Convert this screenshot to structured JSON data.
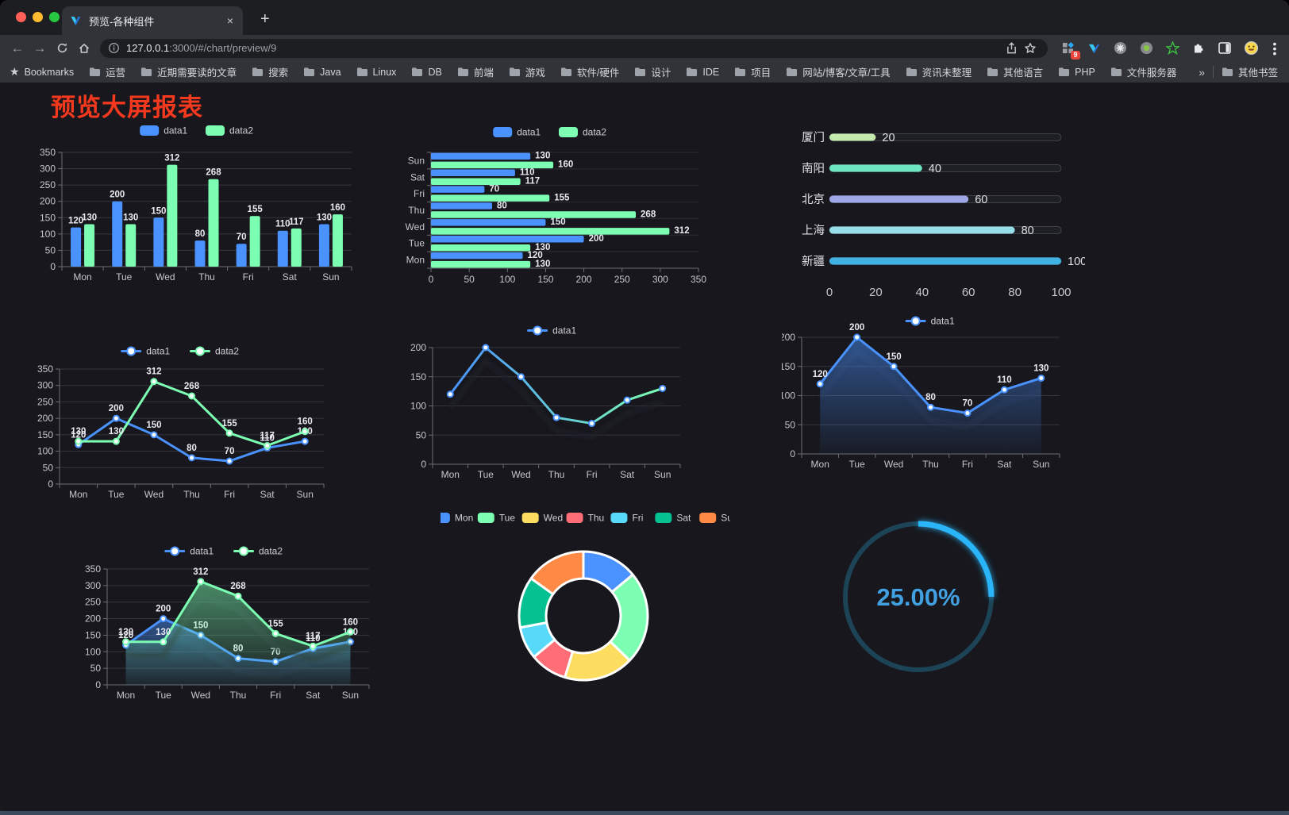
{
  "browser": {
    "tab": {
      "title": "预览-各种组件",
      "close_glyph": "×",
      "new_tab_glyph": "+"
    },
    "url": {
      "host": "127.0.0.1",
      "rest": ":3000/#/chart/preview/9"
    },
    "extension_badge": "9",
    "bookmarks_label": "Bookmarks",
    "bookmarks": [
      "运营",
      "近期需要读的文章",
      "搜索",
      "Java",
      "Linux",
      "DB",
      "前端",
      "游戏",
      "软件/硬件",
      "设计",
      "IDE",
      "项目",
      "网站/博客/文章/工具",
      "资讯未整理",
      "其他语言",
      "PHP",
      "文件服务器"
    ],
    "bookmarks_overflow": "»",
    "other_bookmarks": "其他书签"
  },
  "page": {
    "title": "预览大屏报表",
    "title_color": "#f5391e"
  },
  "chart_data": [
    {
      "id": "bar-vertical",
      "type": "bar",
      "categories": [
        "Mon",
        "Tue",
        "Wed",
        "Thu",
        "Fri",
        "Sat",
        "Sun"
      ],
      "series": [
        {
          "name": "data1",
          "color": "#4992ff",
          "values": [
            120,
            200,
            150,
            80,
            70,
            110,
            130
          ]
        },
        {
          "name": "data2",
          "color": "#7cffb2",
          "values": [
            130,
            130,
            312,
            268,
            155,
            117,
            160
          ]
        }
      ],
      "ylim": [
        0,
        350
      ],
      "ytick": 50,
      "legend_position": "top",
      "grid": true,
      "value_labels": true
    },
    {
      "id": "bar-horizontal",
      "type": "bar-horizontal",
      "category_order": "bottom-to-top",
      "categories": [
        "Mon",
        "Tue",
        "Wed",
        "Thu",
        "Fri",
        "Sat",
        "Sun"
      ],
      "series": [
        {
          "name": "data1",
          "color": "#4992ff",
          "values": [
            120,
            200,
            150,
            80,
            70,
            110,
            130
          ]
        },
        {
          "name": "data2",
          "color": "#7cffb2",
          "values": [
            130,
            130,
            312,
            268,
            155,
            117,
            160
          ]
        }
      ],
      "xlim": [
        0,
        350
      ],
      "xtick": 50,
      "legend_position": "top",
      "value_labels": true
    },
    {
      "id": "progress-bars",
      "type": "bar-horizontal",
      "variant": "rounded-progress",
      "categories": [
        "厦门",
        "南阳",
        "北京",
        "上海",
        "新疆"
      ],
      "values": [
        20,
        40,
        60,
        80,
        100
      ],
      "colors": [
        "#c4ebad",
        "#6be6c1",
        "#a0a7e6",
        "#96dee8",
        "#3fb1e3"
      ],
      "xlim": [
        0,
        100
      ],
      "xticks": [
        0,
        20,
        40,
        60,
        80,
        100
      ],
      "value_labels": true
    },
    {
      "id": "line-dual",
      "type": "line",
      "categories": [
        "Mon",
        "Tue",
        "Wed",
        "Thu",
        "Fri",
        "Sat",
        "Sun"
      ],
      "series": [
        {
          "name": "data1",
          "color": "#4992ff",
          "values": [
            120,
            200,
            150,
            80,
            70,
            110,
            130
          ]
        },
        {
          "name": "data2",
          "color": "#7cffb2",
          "values": [
            130,
            130,
            312,
            268,
            155,
            117,
            160
          ]
        }
      ],
      "ylim": [
        0,
        350
      ],
      "ytick": 50,
      "legend_position": "top",
      "value_labels": true,
      "markers": true
    },
    {
      "id": "line-single",
      "type": "line",
      "categories": [
        "Mon",
        "Tue",
        "Wed",
        "Thu",
        "Fri",
        "Sat",
        "Sun"
      ],
      "series": [
        {
          "name": "data1",
          "color": "#4992ff",
          "color_gradient": [
            "#4992ff",
            "#7cffb2"
          ],
          "values": [
            120,
            200,
            150,
            80,
            70,
            110,
            130
          ]
        }
      ],
      "ylim": [
        0,
        200
      ],
      "ytick": 50,
      "legend_position": "top",
      "value_labels": false,
      "markers": true,
      "shadow": true
    },
    {
      "id": "area-single",
      "type": "area",
      "categories": [
        "Mon",
        "Tue",
        "Wed",
        "Thu",
        "Fri",
        "Sat",
        "Sun"
      ],
      "series": [
        {
          "name": "data1",
          "color": "#4992ff",
          "values": [
            120,
            200,
            150,
            80,
            70,
            110,
            130
          ],
          "area": true
        }
      ],
      "ylim": [
        0,
        200
      ],
      "ytick": 50,
      "legend_position": "top",
      "value_labels": true,
      "markers": true,
      "shadow": true
    },
    {
      "id": "area-dual",
      "type": "area",
      "categories": [
        "Mon",
        "Tue",
        "Wed",
        "Thu",
        "Fri",
        "Sat",
        "Sun"
      ],
      "series": [
        {
          "name": "data1",
          "color": "#4992ff",
          "values": [
            120,
            200,
            150,
            80,
            70,
            110,
            130
          ],
          "area": true
        },
        {
          "name": "data2",
          "color": "#7cffb2",
          "values": [
            130,
            130,
            312,
            268,
            155,
            117,
            160
          ],
          "area": true
        }
      ],
      "ylim": [
        0,
        350
      ],
      "ytick": 50,
      "legend_position": "top",
      "value_labels": true,
      "markers": true,
      "shadow": true
    },
    {
      "id": "donut",
      "type": "pie",
      "inner_radius_ratio": 0.58,
      "legend_position": "top",
      "categories": [
        "Mon",
        "Tue",
        "Wed",
        "Thu",
        "Fri",
        "Sat",
        "Sun"
      ],
      "values": [
        120,
        200,
        150,
        80,
        70,
        110,
        130
      ],
      "colors": [
        "#4992ff",
        "#7cffb2",
        "#fddd60",
        "#ff6e76",
        "#58d9f9",
        "#05c091",
        "#ff8a45"
      ]
    },
    {
      "id": "gauge",
      "type": "gauge",
      "value": 25,
      "max": 100,
      "label": "25.00%",
      "arc_color": "#2ab5f8",
      "track_color": "#1d4456",
      "text_color": "#41a0e0"
    }
  ]
}
